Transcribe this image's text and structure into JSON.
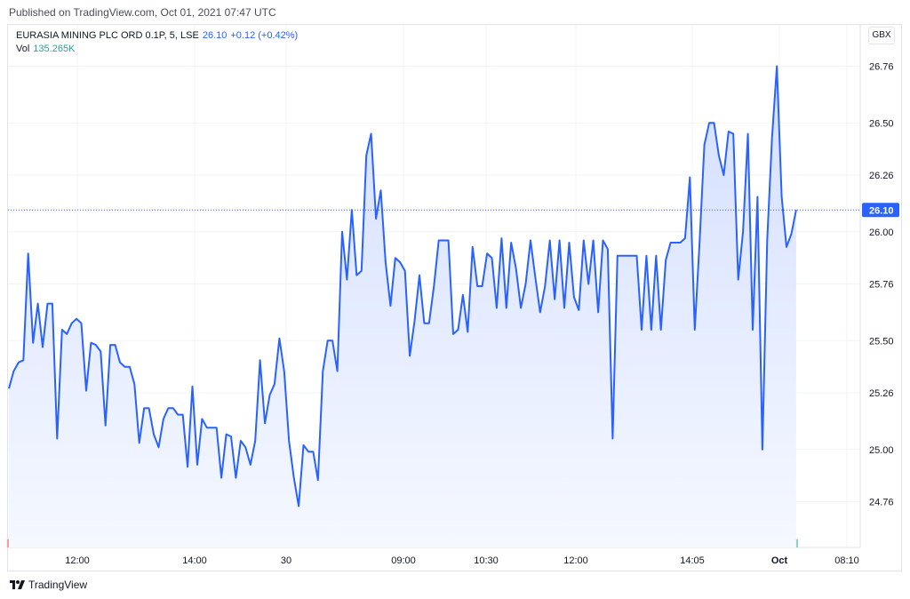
{
  "published": "Published on TradingView.com, Oct 01, 2021 07:47 UTC",
  "legend": {
    "symbol": "EURASIA MINING PLC ORD 0.1P, 5, LSE",
    "price": "26.10",
    "change": "+0.12 (+0.42%)",
    "vol_label": "Vol",
    "vol_value": "135.265K"
  },
  "currency": "GBX",
  "footer": {
    "brand": "TradingView"
  },
  "colors": {
    "line": "#2962ff",
    "area_top": "#d4dfff",
    "area_bottom": "#f5f8ff",
    "vol_up": "#8fd3c4",
    "vol_down": "#f2a0a0",
    "grid": "#f0f3fa",
    "price_tag": "#2962ff"
  },
  "chart_data": {
    "type": "area",
    "y_ticks": [
      "26.76",
      "26.50",
      "26.26",
      "26.00",
      "25.76",
      "25.50",
      "25.26",
      "25.00",
      "24.76"
    ],
    "x_ticks": [
      "12:00",
      "14:00",
      "30",
      "09:00",
      "10:30",
      "12:00",
      "14:05",
      "Oct",
      "08:10"
    ],
    "ylim": [
      24.55,
      26.95
    ],
    "last_price": 26.1,
    "last_price_label": "26.10",
    "series": [
      {
        "values": [
          25.28,
          25.36,
          25.4,
          25.41,
          25.9,
          25.49,
          25.67,
          25.47,
          25.67,
          25.67,
          25.05,
          25.55,
          25.53,
          25.58,
          25.6,
          25.58,
          25.27,
          25.49,
          25.48,
          25.45,
          25.11,
          25.48,
          25.48,
          25.4,
          25.38,
          25.38,
          25.3,
          25.03,
          25.19,
          25.19,
          25.07,
          25.01,
          25.14,
          25.19,
          25.19,
          25.16,
          25.16,
          24.92,
          25.29,
          24.93,
          25.14,
          25.1,
          25.1,
          25.1,
          24.87,
          25.07,
          25.06,
          24.87,
          25.04,
          25.01,
          24.93,
          25.04,
          25.41,
          25.12,
          25.25,
          25.3,
          25.51,
          25.36,
          25.04,
          24.87,
          24.74,
          25.02,
          24.99,
          24.99,
          24.86,
          25.36,
          25.5,
          25.5,
          25.36,
          26.0,
          25.78,
          26.1,
          25.8,
          25.82,
          26.35,
          26.45,
          26.06,
          26.19,
          25.86,
          25.66,
          25.88,
          25.86,
          25.82,
          25.43,
          25.59,
          25.8,
          25.58,
          25.58,
          25.75,
          25.96,
          25.96,
          25.96,
          25.53,
          25.55,
          25.71,
          25.54,
          25.93,
          25.75,
          25.75,
          25.9,
          25.88,
          25.65,
          25.97,
          25.65,
          25.95,
          25.83,
          25.65,
          25.76,
          25.96,
          25.79,
          25.63,
          25.75,
          25.96,
          25.69,
          25.96,
          25.65,
          25.95,
          25.7,
          25.64,
          25.96,
          25.76,
          25.96,
          25.63,
          25.96,
          25.92,
          25.05,
          25.89,
          25.89,
          25.89,
          25.89,
          25.89,
          25.55,
          25.89,
          25.55,
          25.89,
          25.55,
          25.87,
          25.95,
          25.95,
          25.95,
          25.97,
          26.25,
          25.55,
          25.95,
          26.4,
          26.5,
          26.5,
          26.35,
          26.26,
          26.46,
          26.45,
          25.78,
          26.0,
          26.45,
          25.55,
          26.16,
          25.0,
          25.96,
          26.43,
          26.76,
          26.16,
          25.93,
          25.99,
          26.1
        ],
        "volume": [
          8,
          7,
          6,
          5,
          4,
          4,
          5,
          4,
          4,
          3,
          17,
          5,
          3,
          4,
          4,
          3,
          4,
          3,
          3,
          4,
          5,
          5,
          3,
          4,
          7,
          3,
          4,
          5,
          3,
          4,
          4,
          13,
          4,
          6,
          4,
          3,
          3,
          6,
          10,
          6,
          13,
          4,
          3,
          3,
          4,
          4,
          4,
          6,
          13,
          3,
          3,
          12,
          29,
          10,
          22,
          17,
          5,
          6,
          12,
          14,
          5,
          4,
          4,
          3,
          4,
          13,
          26,
          5,
          9,
          29,
          7,
          6,
          6,
          4,
          6,
          4,
          7,
          3,
          5,
          14,
          4,
          3,
          4,
          4,
          8,
          4,
          3,
          5,
          3,
          5,
          4,
          6,
          4,
          3,
          4,
          3,
          4,
          4,
          8,
          3,
          3,
          8,
          3,
          5,
          4,
          6,
          5,
          4,
          3,
          4,
          5,
          3,
          6,
          3,
          4,
          3,
          3,
          3,
          4,
          3,
          4,
          3,
          3,
          4,
          3,
          3,
          7,
          4,
          3,
          4,
          3,
          4,
          5,
          3,
          3,
          3,
          5,
          4,
          4,
          7,
          4,
          5,
          10,
          9,
          6,
          22,
          6,
          19,
          20,
          21,
          6,
          6,
          4,
          6,
          4,
          8,
          3,
          64,
          26,
          25,
          16,
          7,
          16,
          8
        ],
        "volume_up": [
          0,
          1,
          1,
          1,
          1,
          1,
          1,
          1,
          1,
          1,
          0,
          1,
          1,
          1,
          1,
          1,
          1,
          1,
          1,
          1,
          1,
          1,
          1,
          1,
          1,
          0,
          1,
          1,
          1,
          0,
          1,
          0,
          1,
          1,
          1,
          0,
          1,
          1,
          0,
          1,
          1,
          1,
          0,
          1,
          1,
          0,
          1,
          1,
          1,
          0,
          1,
          1,
          1,
          1,
          1,
          1,
          1,
          0,
          0,
          0,
          1,
          1,
          1,
          0,
          1,
          1,
          1,
          1,
          0,
          1,
          1,
          0,
          0,
          0,
          1,
          1,
          0,
          1,
          0,
          0,
          1,
          1,
          0,
          1,
          1,
          0,
          1,
          1,
          0,
          1,
          1,
          1,
          0,
          1,
          1,
          0,
          1,
          1,
          1,
          0,
          1,
          0,
          1,
          1,
          0,
          1,
          0,
          1,
          1,
          1,
          0,
          1,
          1,
          0,
          1,
          1,
          0,
          1,
          1,
          0,
          1,
          1,
          0,
          1,
          0,
          1,
          1,
          1,
          0,
          1,
          1,
          0,
          1,
          1,
          0,
          1,
          1,
          1,
          0,
          1,
          1,
          1,
          1,
          1,
          0,
          1,
          1,
          1,
          1,
          1,
          0,
          0,
          1,
          0,
          0,
          0,
          1,
          0,
          1,
          1,
          1,
          0,
          1,
          1
        ]
      }
    ]
  }
}
